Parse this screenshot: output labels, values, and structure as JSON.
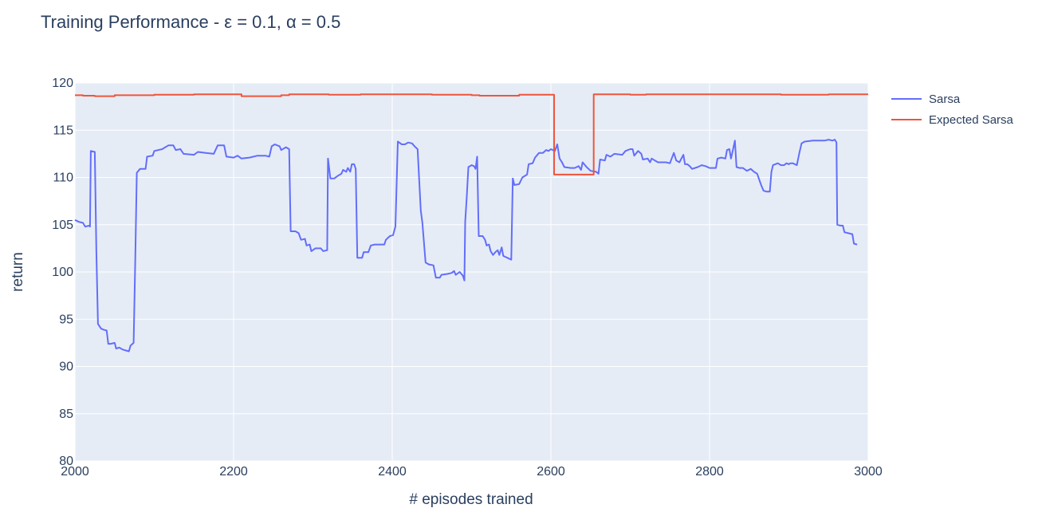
{
  "chart_data": {
    "type": "line",
    "title": "Training Performance - ε = 0.1, α = 0.5",
    "xlabel": "# episodes trained",
    "ylabel": "return",
    "xlim": [
      2000,
      3000
    ],
    "ylim": [
      80,
      120
    ],
    "x_ticks": [
      2000,
      2200,
      2400,
      2600,
      2800,
      3000
    ],
    "y_ticks": [
      80,
      85,
      90,
      95,
      100,
      105,
      110,
      115,
      120
    ],
    "grid": true,
    "legend_position": "top-right",
    "colors": {
      "plot_background": "#e5ecf6",
      "grid": "#ffffff",
      "text": "#2a3f5f"
    },
    "series": [
      {
        "name": "Sarsa",
        "color": "#636efa",
        "step": false,
        "points": [
          [
            2000,
            105.5
          ],
          [
            2005,
            105.3
          ],
          [
            2010,
            105.2
          ],
          [
            2013,
            104.8
          ],
          [
            2018,
            104.9
          ],
          [
            2019,
            104.8
          ],
          [
            2020,
            112.8
          ],
          [
            2025,
            112.7
          ],
          [
            2027,
            102.0
          ],
          [
            2029,
            94.5
          ],
          [
            2033,
            94.0
          ],
          [
            2036,
            93.9
          ],
          [
            2040,
            93.8
          ],
          [
            2042,
            92.4
          ],
          [
            2045,
            92.4
          ],
          [
            2050,
            92.5
          ],
          [
            2052,
            91.9
          ],
          [
            2056,
            92.0
          ],
          [
            2060,
            91.8
          ],
          [
            2064,
            91.7
          ],
          [
            2068,
            91.6
          ],
          [
            2070,
            92.2
          ],
          [
            2074,
            92.5
          ],
          [
            2076,
            101.0
          ],
          [
            2078,
            110.5
          ],
          [
            2082,
            110.9
          ],
          [
            2089,
            110.9
          ],
          [
            2091,
            112.2
          ],
          [
            2098,
            112.3
          ],
          [
            2100,
            112.8
          ],
          [
            2110,
            113.0
          ],
          [
            2118,
            113.4
          ],
          [
            2124,
            113.4
          ],
          [
            2127,
            112.9
          ],
          [
            2133,
            113.0
          ],
          [
            2137,
            112.5
          ],
          [
            2150,
            112.4
          ],
          [
            2155,
            112.7
          ],
          [
            2165,
            112.6
          ],
          [
            2175,
            112.5
          ],
          [
            2180,
            113.4
          ],
          [
            2188,
            113.4
          ],
          [
            2191,
            112.2
          ],
          [
            2200,
            112.1
          ],
          [
            2205,
            112.3
          ],
          [
            2210,
            112.0
          ],
          [
            2220,
            112.1
          ],
          [
            2230,
            112.3
          ],
          [
            2240,
            112.3
          ],
          [
            2245,
            112.2
          ],
          [
            2248,
            113.3
          ],
          [
            2252,
            113.5
          ],
          [
            2258,
            113.3
          ],
          [
            2260,
            112.9
          ],
          [
            2266,
            113.2
          ],
          [
            2270,
            113.0
          ],
          [
            2272,
            104.3
          ],
          [
            2278,
            104.3
          ],
          [
            2282,
            104.1
          ],
          [
            2285,
            103.4
          ],
          [
            2290,
            103.5
          ],
          [
            2292,
            102.8
          ],
          [
            2296,
            102.9
          ],
          [
            2298,
            102.2
          ],
          [
            2303,
            102.5
          ],
          [
            2310,
            102.5
          ],
          [
            2313,
            102.2
          ],
          [
            2318,
            102.3
          ],
          [
            2319,
            112.0
          ],
          [
            2322,
            109.9
          ],
          [
            2327,
            109.9
          ],
          [
            2332,
            110.2
          ],
          [
            2336,
            110.4
          ],
          [
            2338,
            110.8
          ],
          [
            2342,
            110.6
          ],
          [
            2344,
            111.0
          ],
          [
            2347,
            110.6
          ],
          [
            2349,
            111.4
          ],
          [
            2352,
            111.4
          ],
          [
            2354,
            110.9
          ],
          [
            2356,
            101.5
          ],
          [
            2362,
            101.5
          ],
          [
            2364,
            102.1
          ],
          [
            2370,
            102.1
          ],
          [
            2373,
            102.8
          ],
          [
            2378,
            102.9
          ],
          [
            2390,
            102.9
          ],
          [
            2392,
            103.4
          ],
          [
            2397,
            103.8
          ],
          [
            2401,
            103.9
          ],
          [
            2404,
            104.8
          ],
          [
            2407,
            113.8
          ],
          [
            2412,
            113.5
          ],
          [
            2416,
            113.5
          ],
          [
            2420,
            113.7
          ],
          [
            2425,
            113.6
          ],
          [
            2428,
            113.3
          ],
          [
            2432,
            113.0
          ],
          [
            2436,
            106.5
          ],
          [
            2438,
            105.2
          ],
          [
            2442,
            101.0
          ],
          [
            2446,
            100.8
          ],
          [
            2452,
            100.7
          ],
          [
            2455,
            99.4
          ],
          [
            2460,
            99.4
          ],
          [
            2462,
            99.7
          ],
          [
            2470,
            99.8
          ],
          [
            2475,
            99.9
          ],
          [
            2478,
            100.1
          ],
          [
            2480,
            99.7
          ],
          [
            2485,
            100.0
          ],
          [
            2489,
            99.6
          ],
          [
            2491,
            99.1
          ],
          [
            2492,
            105.3
          ],
          [
            2494,
            108.0
          ],
          [
            2496,
            111.1
          ],
          [
            2500,
            111.3
          ],
          [
            2503,
            111.2
          ],
          [
            2505,
            110.9
          ],
          [
            2507,
            112.2
          ],
          [
            2509,
            103.8
          ],
          [
            2514,
            103.8
          ],
          [
            2517,
            103.4
          ],
          [
            2519,
            102.8
          ],
          [
            2522,
            102.9
          ],
          [
            2524,
            102.2
          ],
          [
            2527,
            101.8
          ],
          [
            2530,
            102.1
          ],
          [
            2533,
            102.3
          ],
          [
            2535,
            101.8
          ],
          [
            2538,
            102.6
          ],
          [
            2540,
            101.7
          ],
          [
            2545,
            101.5
          ],
          [
            2550,
            101.3
          ],
          [
            2552,
            109.9
          ],
          [
            2554,
            109.2
          ],
          [
            2560,
            109.3
          ],
          [
            2564,
            110.0
          ],
          [
            2570,
            110.3
          ],
          [
            2572,
            111.4
          ],
          [
            2577,
            111.5
          ],
          [
            2580,
            112.1
          ],
          [
            2585,
            112.6
          ],
          [
            2590,
            112.6
          ],
          [
            2594,
            112.9
          ],
          [
            2597,
            112.8
          ],
          [
            2600,
            113.0
          ],
          [
            2605,
            112.8
          ],
          [
            2608,
            113.5
          ],
          [
            2611,
            112.0
          ],
          [
            2614,
            111.6
          ],
          [
            2617,
            111.1
          ],
          [
            2625,
            111.0
          ],
          [
            2630,
            111.0
          ],
          [
            2635,
            111.2
          ],
          [
            2638,
            110.8
          ],
          [
            2640,
            111.6
          ],
          [
            2645,
            111.1
          ],
          [
            2650,
            110.7
          ],
          [
            2657,
            110.6
          ],
          [
            2660,
            110.4
          ],
          [
            2662,
            111.9
          ],
          [
            2668,
            111.8
          ],
          [
            2670,
            112.4
          ],
          [
            2675,
            112.2
          ],
          [
            2680,
            112.5
          ],
          [
            2690,
            112.4
          ],
          [
            2694,
            112.8
          ],
          [
            2700,
            113.0
          ],
          [
            2703,
            113.0
          ],
          [
            2705,
            112.3
          ],
          [
            2710,
            112.8
          ],
          [
            2714,
            112.5
          ],
          [
            2716,
            111.9
          ],
          [
            2722,
            112.0
          ],
          [
            2725,
            111.6
          ],
          [
            2727,
            112.0
          ],
          [
            2735,
            111.6
          ],
          [
            2745,
            111.6
          ],
          [
            2750,
            111.5
          ],
          [
            2755,
            112.6
          ],
          [
            2758,
            111.8
          ],
          [
            2762,
            111.6
          ],
          [
            2767,
            112.4
          ],
          [
            2769,
            111.4
          ],
          [
            2772,
            111.4
          ],
          [
            2775,
            111.2
          ],
          [
            2778,
            110.9
          ],
          [
            2785,
            111.1
          ],
          [
            2790,
            111.3
          ],
          [
            2795,
            111.2
          ],
          [
            2800,
            111.0
          ],
          [
            2808,
            111.0
          ],
          [
            2810,
            112.0
          ],
          [
            2815,
            112.1
          ],
          [
            2820,
            112.0
          ],
          [
            2822,
            112.9
          ],
          [
            2825,
            113.0
          ],
          [
            2827,
            112.0
          ],
          [
            2830,
            113.1
          ],
          [
            2832,
            113.9
          ],
          [
            2834,
            111.1
          ],
          [
            2838,
            111.0
          ],
          [
            2842,
            111.0
          ],
          [
            2847,
            110.7
          ],
          [
            2852,
            110.9
          ],
          [
            2856,
            110.6
          ],
          [
            2860,
            110.4
          ],
          [
            2865,
            109.2
          ],
          [
            2868,
            108.6
          ],
          [
            2872,
            108.5
          ],
          [
            2876,
            108.5
          ],
          [
            2878,
            110.6
          ],
          [
            2880,
            111.3
          ],
          [
            2886,
            111.5
          ],
          [
            2890,
            111.3
          ],
          [
            2894,
            111.3
          ],
          [
            2897,
            111.5
          ],
          [
            2900,
            111.4
          ],
          [
            2902,
            111.5
          ],
          [
            2905,
            111.5
          ],
          [
            2910,
            111.3
          ],
          [
            2913,
            112.5
          ],
          [
            2916,
            113.6
          ],
          [
            2920,
            113.8
          ],
          [
            2930,
            113.9
          ],
          [
            2940,
            113.9
          ],
          [
            2945,
            113.9
          ],
          [
            2950,
            114.0
          ],
          [
            2955,
            113.9
          ],
          [
            2958,
            114.0
          ],
          [
            2960,
            113.7
          ],
          [
            2961,
            105.0
          ],
          [
            2965,
            104.9
          ],
          [
            2968,
            104.9
          ],
          [
            2970,
            104.2
          ],
          [
            2975,
            104.1
          ],
          [
            2980,
            104.0
          ],
          [
            2982,
            103.0
          ],
          [
            2986,
            102.9
          ]
        ]
      },
      {
        "name": "Expected Sarsa",
        "color": "#ef553b",
        "step": true,
        "points": [
          [
            2000,
            118.7
          ],
          [
            2010,
            118.65
          ],
          [
            2025,
            118.6
          ],
          [
            2050,
            118.7
          ],
          [
            2100,
            118.75
          ],
          [
            2150,
            118.8
          ],
          [
            2190,
            118.8
          ],
          [
            2210,
            118.6
          ],
          [
            2260,
            118.7
          ],
          [
            2270,
            118.8
          ],
          [
            2300,
            118.8
          ],
          [
            2320,
            118.75
          ],
          [
            2360,
            118.8
          ],
          [
            2400,
            118.8
          ],
          [
            2450,
            118.75
          ],
          [
            2500,
            118.7
          ],
          [
            2510,
            118.65
          ],
          [
            2560,
            118.75
          ],
          [
            2604,
            110.3
          ],
          [
            2654,
            118.8
          ],
          [
            2700,
            118.75
          ],
          [
            2720,
            118.8
          ],
          [
            2800,
            118.8
          ],
          [
            2890,
            118.75
          ],
          [
            2950,
            118.8
          ],
          [
            3000,
            118.8
          ]
        ]
      }
    ]
  }
}
